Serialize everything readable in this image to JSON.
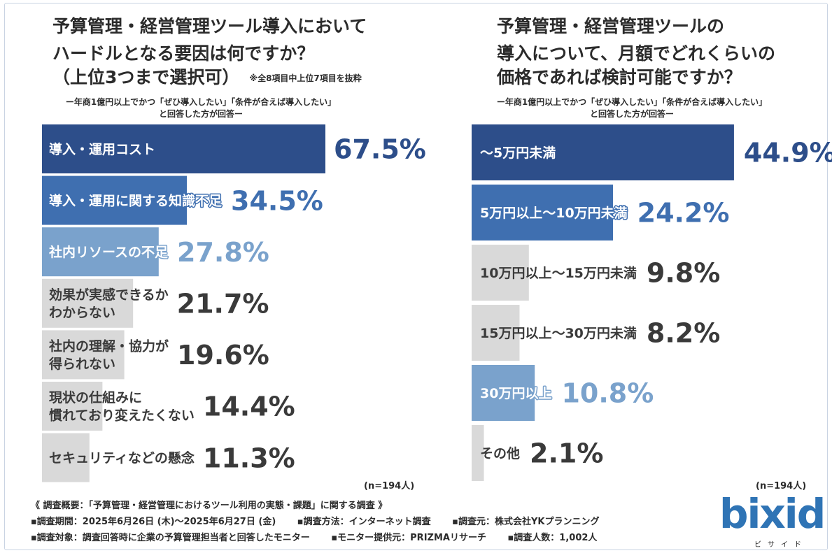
{
  "colors": {
    "dark_blue": "#2d4e8a",
    "mid_blue": "#3f6fb0",
    "light_blue": "#7aa2cc",
    "gray": "#d9d9d9",
    "dark_text": "#3a3a3a",
    "logo_blue": "#2f74b5"
  },
  "left": {
    "title_lines": [
      "予算管理・経営管理ツール導入において",
      "ハードルとなる要因は何ですか？",
      "（上位3つまで選択可）"
    ],
    "title_note": "※全8項目中上位7項目を抜粋",
    "subtitle_lines": [
      "ー年商1億円以上でかつ「ぜひ導入したい」「条件が合えば導入したい」",
      "と回答した方が回答ー"
    ],
    "n_label": "(n=194人)"
  },
  "right": {
    "title_lines": [
      "予算管理・経営管理ツールの",
      "導入について、月額でどれくらいの",
      "価格であれば検討可能ですか？"
    ],
    "subtitle_lines": [
      "ー年商1億円以上でかつ「ぜひ導入したい」「条件が合えば導入したい」",
      "と回答した方が回答ー"
    ],
    "n_label": "(n=194人)"
  },
  "chart_data": [
    {
      "type": "bar",
      "orientation": "horizontal",
      "title": "予算管理・経営管理ツール導入においてハードルとなる要因は何ですか？（上位3つまで選択可）",
      "categories": [
        "導入・運用コスト",
        "導入・運用に関する知識不足",
        "社内リソースの不足",
        "効果が実感できるか\nわからない",
        "社内の理解・協力が\n得られない",
        "現状の仕組みに\n慣れており変えたくない",
        "セキュリティなどの懸念"
      ],
      "values": [
        67.5,
        34.5,
        27.8,
        21.7,
        19.6,
        14.4,
        11.3
      ],
      "value_labels": [
        "67.5%",
        "34.5%",
        "27.8%",
        "21.7%",
        "19.6%",
        "14.4%",
        "11.3%"
      ],
      "bar_styles": [
        "dark",
        "mid",
        "light",
        "gray",
        "gray",
        "gray",
        "gray"
      ],
      "xlim": [
        0,
        100
      ],
      "unit": "%"
    },
    {
      "type": "bar",
      "orientation": "horizontal",
      "title": "予算管理・経営管理ツールの導入について、月額でどれくらいの価格であれば検討可能ですか？",
      "categories": [
        "〜5万円未満",
        "5万円以上〜10万円未満",
        "10万円以上〜15万円未満",
        "15万円以上〜30万円未満",
        "30万円以上",
        "その他"
      ],
      "values": [
        44.9,
        24.2,
        9.8,
        8.2,
        10.8,
        2.1
      ],
      "value_labels": [
        "44.9%",
        "24.2%",
        "9.8%",
        "8.2%",
        "10.8%",
        "2.1%"
      ],
      "bar_styles": [
        "dark",
        "mid",
        "gray",
        "gray",
        "light",
        "gray"
      ],
      "xlim": [
        0,
        100
      ],
      "unit": "%"
    }
  ],
  "footer": {
    "heading": "《 調査概要：「予算管理・経営管理におけるツール利用の実態・課題」に関する調査 》",
    "row1": [
      "▪調査期間：2025年6月26日 (木)〜2025年6月27日 (金)",
      "▪調査方法：インターネット調査",
      "▪調査元：株式会社YKプランニング"
    ],
    "row2": [
      "▪調査対象：調査回答時に企業の予算管理担当者と回答したモニター",
      "▪モニター提供元：PRIZMAリサーチ",
      "▪調査人数：1,002人"
    ]
  },
  "logo": {
    "text": "bixid",
    "sub": "ビサイド"
  }
}
